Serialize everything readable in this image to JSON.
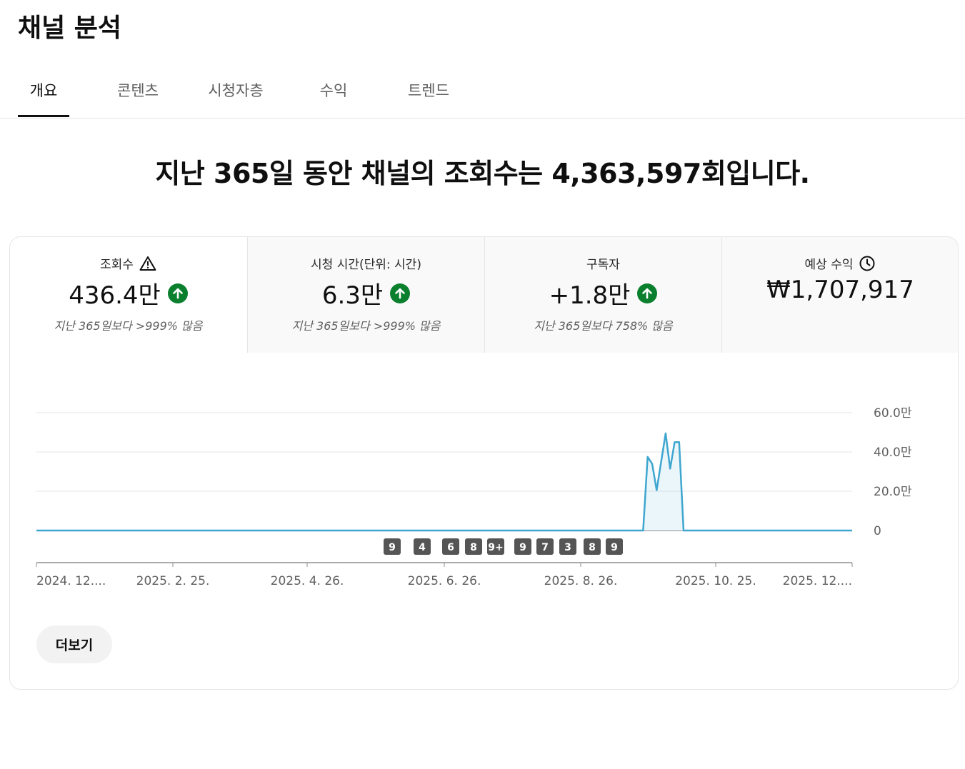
{
  "page_title": "채널 분석",
  "tabs": [
    {
      "label": "개요",
      "active": true
    },
    {
      "label": "콘텐츠",
      "active": false
    },
    {
      "label": "시청자층",
      "active": false
    },
    {
      "label": "수익",
      "active": false
    },
    {
      "label": "트렌드",
      "active": false
    }
  ],
  "headline": "지난 365일 동안 채널의 조회수는 4,363,597회입니다.",
  "metrics": [
    {
      "label": "조회수",
      "value": "436.4만",
      "compare": "지난 365일보다 >999% 많음",
      "label_icon": "warning-icon",
      "trend_icon": "arrow-up-icon"
    },
    {
      "label": "시청 시간(단위: 시간)",
      "value": "6.3만",
      "compare": "지난 365일보다 >999% 많음",
      "trend_icon": "arrow-up-icon"
    },
    {
      "label": "구독자",
      "value": "+1.8만",
      "compare": "지난 365일보다 758% 많음",
      "trend_icon": "arrow-up-icon"
    },
    {
      "label": "예상 수익",
      "value": "₩1,707,917",
      "label_icon": "clock-icon"
    }
  ],
  "chart_data": {
    "type": "area",
    "x_tick_labels": [
      "2024. 12....",
      "2025. 2. 25.",
      "2025. 4. 26.",
      "2025. 6. 26.",
      "2025. 8. 26.",
      "2025. 10. 25.",
      "2025. 12...."
    ],
    "y_tick_labels": [
      "60.0만",
      "40.0만",
      "20.0만",
      "0"
    ],
    "ylim": [
      0,
      600000
    ],
    "series": [
      {
        "values": [
          {
            "date": "2024-12-18",
            "views": 0
          },
          {
            "date": "2025-09-14",
            "views": 0
          },
          {
            "date": "2025-09-16",
            "views": 375000
          },
          {
            "date": "2025-09-18",
            "views": 340000
          },
          {
            "date": "2025-09-20",
            "views": 205000
          },
          {
            "date": "2025-09-24",
            "views": 495000
          },
          {
            "date": "2025-09-26",
            "views": 315000
          },
          {
            "date": "2025-09-28",
            "views": 450000
          },
          {
            "date": "2025-09-30",
            "views": 450000
          },
          {
            "date": "2025-10-02",
            "views": 0
          },
          {
            "date": "2025-12-16",
            "views": 0
          }
        ]
      }
    ],
    "markers": [
      "9",
      "4",
      "6",
      "8",
      "9+",
      "9",
      "7",
      "3",
      "8",
      "9"
    ],
    "grid": true,
    "color": "#3ea6cf"
  },
  "more_button_label": "더보기"
}
